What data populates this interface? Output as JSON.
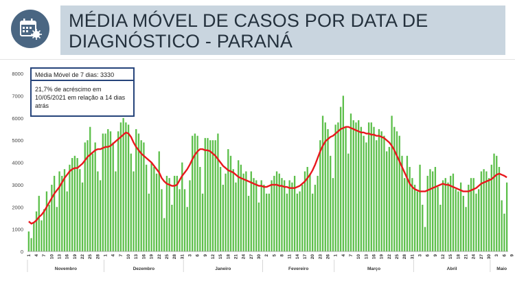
{
  "header": {
    "title": "MÉDIA MÓVEL DE CASOS POR DATA DE DIAGNÓSTICO - PARANÁ",
    "icon": "calendar-virus-icon",
    "icon_color": "#4a6682",
    "bar_color": "#c9d5df"
  },
  "annotation": {
    "moving_average": "Média Móvel de 7 dias: 3330",
    "increase": "21,7% de acréscimo em 10/05/2021  em relação a 14 dias atrás"
  },
  "chart_data": {
    "type": "bar",
    "title": "MÉDIA MÓVEL DE CASOS POR DATA DE DIAGNÓSTICO - PARANÁ",
    "xlabel": "",
    "ylabel": "",
    "ylim": [
      0,
      8000
    ],
    "yticks": [
      "0",
      "1000",
      "2000",
      "3000",
      "4000",
      "5000",
      "6000",
      "7000",
      "8000"
    ],
    "grid": false,
    "legend": "none",
    "colors": {
      "bars": "#5cbf4a",
      "moving_average": "#e8171d"
    },
    "month_labels": [
      {
        "label": "Novembro",
        "start": 0,
        "end": 30
      },
      {
        "label": "Dezembro",
        "start": 30,
        "end": 61
      },
      {
        "label": "Janeiro",
        "start": 61,
        "end": 92
      },
      {
        "label": "Fevereiro",
        "start": 92,
        "end": 120
      },
      {
        "label": "Março",
        "start": 120,
        "end": 151
      },
      {
        "label": "Abril",
        "start": 151,
        "end": 181
      },
      {
        "label": "Maio",
        "start": 181,
        "end": 190
      }
    ],
    "day_ticks": [
      {
        "i": 0,
        "label": "1"
      },
      {
        "i": 3,
        "label": "4"
      },
      {
        "i": 6,
        "label": "7"
      },
      {
        "i": 9,
        "label": "10"
      },
      {
        "i": 12,
        "label": "13"
      },
      {
        "i": 15,
        "label": "16"
      },
      {
        "i": 18,
        "label": "19"
      },
      {
        "i": 21,
        "label": "22"
      },
      {
        "i": 24,
        "label": "25"
      },
      {
        "i": 27,
        "label": "28"
      },
      {
        "i": 30,
        "label": "1"
      },
      {
        "i": 33,
        "label": "4"
      },
      {
        "i": 36,
        "label": "7"
      },
      {
        "i": 39,
        "label": "10"
      },
      {
        "i": 42,
        "label": "13"
      },
      {
        "i": 45,
        "label": "16"
      },
      {
        "i": 48,
        "label": "19"
      },
      {
        "i": 51,
        "label": "22"
      },
      {
        "i": 54,
        "label": "25"
      },
      {
        "i": 57,
        "label": "28"
      },
      {
        "i": 60,
        "label": "31"
      },
      {
        "i": 63,
        "label": "3"
      },
      {
        "i": 66,
        "label": "6"
      },
      {
        "i": 69,
        "label": "9"
      },
      {
        "i": 72,
        "label": "12"
      },
      {
        "i": 75,
        "label": "15"
      },
      {
        "i": 78,
        "label": "18"
      },
      {
        "i": 81,
        "label": "21"
      },
      {
        "i": 84,
        "label": "24"
      },
      {
        "i": 87,
        "label": "27"
      },
      {
        "i": 90,
        "label": "30"
      },
      {
        "i": 93,
        "label": "2"
      },
      {
        "i": 96,
        "label": "5"
      },
      {
        "i": 99,
        "label": "8"
      },
      {
        "i": 102,
        "label": "11"
      },
      {
        "i": 105,
        "label": "14"
      },
      {
        "i": 108,
        "label": "17"
      },
      {
        "i": 111,
        "label": "20"
      },
      {
        "i": 114,
        "label": "23"
      },
      {
        "i": 117,
        "label": "26"
      },
      {
        "i": 120,
        "label": "1"
      },
      {
        "i": 123,
        "label": "4"
      },
      {
        "i": 126,
        "label": "7"
      },
      {
        "i": 129,
        "label": "10"
      },
      {
        "i": 132,
        "label": "13"
      },
      {
        "i": 135,
        "label": "16"
      },
      {
        "i": 138,
        "label": "19"
      },
      {
        "i": 141,
        "label": "22"
      },
      {
        "i": 144,
        "label": "25"
      },
      {
        "i": 147,
        "label": "28"
      },
      {
        "i": 150,
        "label": "31"
      },
      {
        "i": 153,
        "label": "3"
      },
      {
        "i": 156,
        "label": "6"
      },
      {
        "i": 159,
        "label": "9"
      },
      {
        "i": 162,
        "label": "12"
      },
      {
        "i": 165,
        "label": "15"
      },
      {
        "i": 168,
        "label": "18"
      },
      {
        "i": 171,
        "label": "21"
      },
      {
        "i": 174,
        "label": "24"
      },
      {
        "i": 177,
        "label": "27"
      },
      {
        "i": 180,
        "label": "30"
      },
      {
        "i": 183,
        "label": "3"
      },
      {
        "i": 186,
        "label": "6"
      },
      {
        "i": 189,
        "label": "9"
      }
    ],
    "series": [
      {
        "type": "bar",
        "values": [
          900,
          600,
          1300,
          1800,
          2500,
          1400,
          1900,
          2700,
          2100,
          3000,
          3400,
          2000,
          3600,
          3400,
          3700,
          2700,
          3900,
          4200,
          4300,
          4200,
          3700,
          3100,
          4900,
          5000,
          5600,
          4400,
          4900,
          3600,
          3200,
          5300,
          5300,
          5500,
          5400,
          4900,
          3600,
          5400,
          5800,
          6000,
          5800,
          5700,
          4400,
          3600,
          5500,
          5300,
          5000,
          4900,
          3900,
          2600,
          4000,
          3800,
          3500,
          4500,
          2800,
          1500,
          3400,
          3300,
          2100,
          3400,
          3400,
          2800,
          4000,
          2800,
          2000,
          3200,
          5200,
          5300,
          5200,
          3800,
          2600,
          5100,
          5100,
          5000,
          5000,
          5000,
          5300,
          3800,
          3000,
          3500,
          4600,
          4300,
          3700,
          3100,
          4100,
          3900,
          3500,
          3600,
          2500,
          3600,
          3300,
          3200,
          2200,
          3200,
          3000,
          2600,
          2600,
          3200,
          3400,
          3600,
          3500,
          3300,
          3200,
          2600,
          3200,
          3100,
          3400,
          2600,
          2700,
          3000,
          3600,
          3800,
          3500,
          2600,
          3000,
          3400,
          5000,
          6100,
          5800,
          5500,
          4300,
          3300,
          5700,
          5800,
          6500,
          7000,
          5600,
          4400,
          6200,
          5900,
          5800,
          5900,
          5600,
          5200,
          4900,
          5800,
          5800,
          5600,
          5000,
          5500,
          5400,
          5200,
          4500,
          4700,
          6100,
          5600,
          5400,
          5200,
          4300,
          3300,
          4300,
          3800,
          3300,
          3000,
          2700,
          3900,
          2100,
          1100,
          3400,
          3700,
          3600,
          3800,
          2900,
          2100,
          3200,
          3300,
          3100,
          3400,
          3500,
          2800,
          2700,
          3100,
          2500,
          2000,
          3000,
          3300,
          3300,
          2600,
          2800,
          3600,
          3700,
          3600,
          3300,
          3900,
          4400,
          4300,
          3800,
          2300,
          1700,
          3100
        ]
      },
      {
        "type": "line",
        "values": [
          1350,
          1250,
          1300,
          1400,
          1550,
          1650,
          1800,
          2000,
          2200,
          2400,
          2600,
          2750,
          2900,
          3100,
          3300,
          3450,
          3600,
          3700,
          3750,
          3750,
          3850,
          3950,
          4100,
          4250,
          4350,
          4450,
          4550,
          4600,
          4600,
          4650,
          4700,
          4700,
          4750,
          4850,
          4950,
          5050,
          5150,
          5250,
          5350,
          5300,
          5150,
          4900,
          4700,
          4550,
          4400,
          4300,
          4200,
          4100,
          4000,
          3850,
          3700,
          3550,
          3300,
          3150,
          3050,
          3000,
          2950,
          2950,
          3000,
          3200,
          3400,
          3550,
          3700,
          3900,
          4150,
          4350,
          4500,
          4600,
          4600,
          4550,
          4550,
          4500,
          4400,
          4300,
          4150,
          4000,
          3850,
          3750,
          3650,
          3600,
          3550,
          3450,
          3350,
          3300,
          3250,
          3200,
          3150,
          3100,
          3050,
          3000,
          2950,
          2950,
          2900,
          2900,
          2950,
          3000,
          3000,
          3000,
          2950,
          2950,
          2900,
          2900,
          2850,
          2850,
          2850,
          2900,
          2950,
          3050,
          3150,
          3300,
          3450,
          3650,
          3900,
          4200,
          4500,
          4750,
          4950,
          5050,
          5150,
          5200,
          5300,
          5400,
          5500,
          5550,
          5600,
          5600,
          5550,
          5500,
          5450,
          5400,
          5350,
          5350,
          5300,
          5300,
          5250,
          5250,
          5200,
          5200,
          5150,
          5100,
          5000,
          4900,
          4750,
          4550,
          4300,
          4050,
          3800,
          3550,
          3300,
          3050,
          2900,
          2800,
          2750,
          2700,
          2700,
          2700,
          2750,
          2800,
          2850,
          2900,
          2950,
          3000,
          3050,
          3000,
          3000,
          2950,
          2900,
          2850,
          2800,
          2750,
          2700,
          2700,
          2700,
          2750,
          2800,
          2850,
          2950,
          3050,
          3100,
          3150,
          3200,
          3250,
          3350,
          3450,
          3500,
          3450,
          3400,
          3330
        ]
      }
    ]
  }
}
